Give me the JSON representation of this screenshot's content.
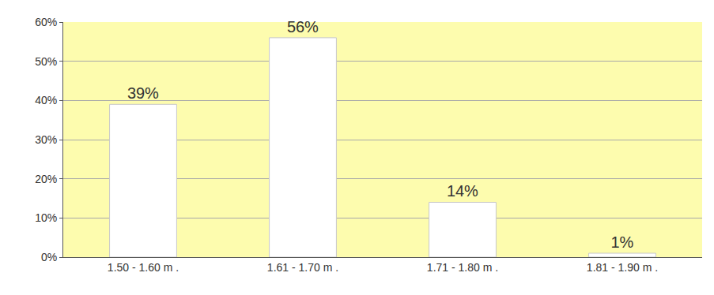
{
  "chart_data": {
    "type": "bar",
    "categories": [
      "1.50 - 1.60 m .",
      "1.61 - 1.70 m .",
      "1.71 - 1.80 m .",
      "1.81 - 1.90 m ."
    ],
    "values": [
      39,
      56,
      14,
      1
    ],
    "value_labels": [
      "39%",
      "56%",
      "14%",
      "1%"
    ],
    "color": "#ffffff",
    "ylim": [
      0,
      60
    ],
    "yticks": [
      {
        "value": 0,
        "label": "0%"
      },
      {
        "value": 10,
        "label": "10%"
      },
      {
        "value": 20,
        "label": "20%"
      },
      {
        "value": 30,
        "label": "30%"
      },
      {
        "value": 40,
        "label": "40%"
      },
      {
        "value": 50,
        "label": "50%"
      },
      {
        "value": 60,
        "label": "60%"
      }
    ],
    "grid": true,
    "data_labels": true
  }
}
